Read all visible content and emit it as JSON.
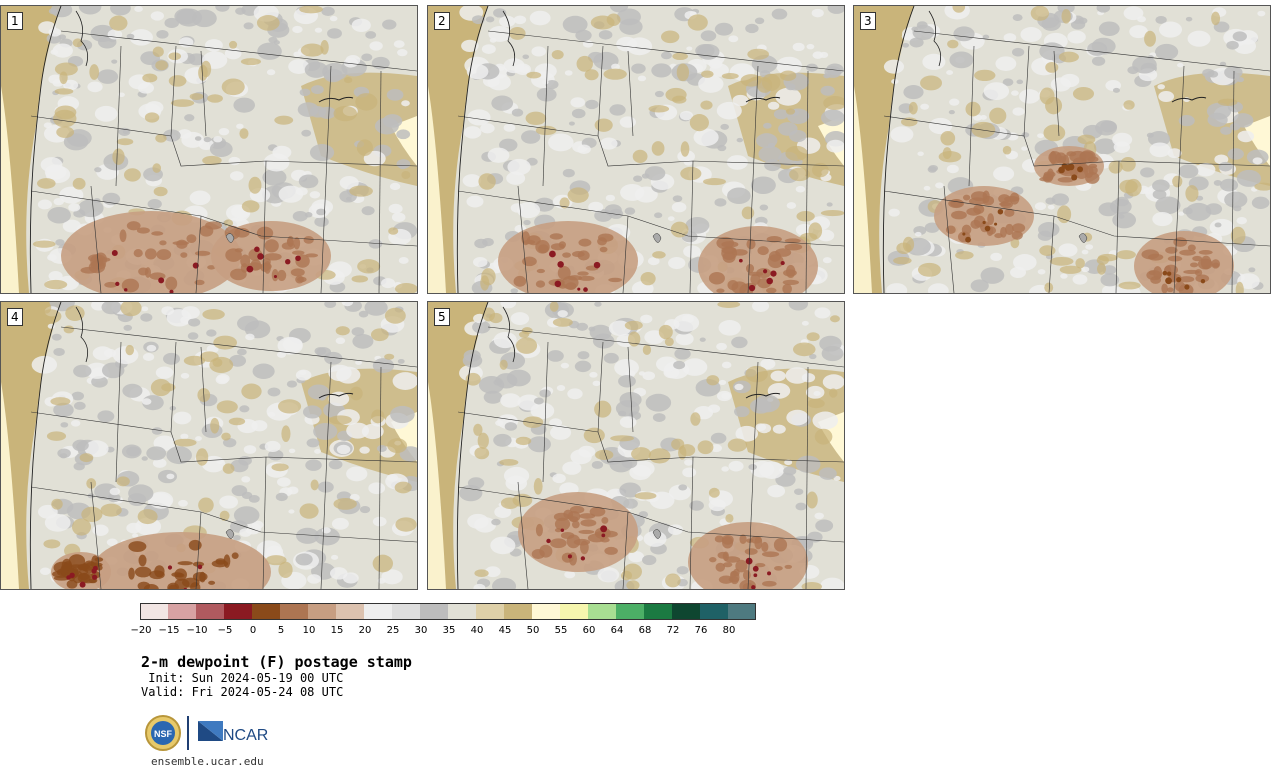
{
  "panels": [
    {
      "label": "1",
      "pattern": "A"
    },
    {
      "label": "2",
      "pattern": "B"
    },
    {
      "label": "3",
      "pattern": "C"
    },
    {
      "label": "4",
      "pattern": "D"
    },
    {
      "label": "5",
      "pattern": "E"
    }
  ],
  "colorbar": {
    "ticks": [
      "−20",
      "−15",
      "−10",
      "−5",
      "0",
      "5",
      "10",
      "15",
      "20",
      "25",
      "30",
      "35",
      "40",
      "45",
      "50",
      "55",
      "60",
      "64",
      "68",
      "72",
      "76",
      "80"
    ],
    "colors": [
      "#f2e6e4",
      "#d7a2a3",
      "#b05a5f",
      "#8b1a22",
      "#8a4a1a",
      "#ad7552",
      "#c79e82",
      "#dcc2af",
      "#eeeeee",
      "#dedede",
      "#bdbdbd",
      "#e1e0d6",
      "#ded0a8",
      "#c9b47a",
      "#fff8d6",
      "#f6f6ae",
      "#a8de92",
      "#4caf66",
      "#1b7a42",
      "#0e4630",
      "#1f6166",
      "#4e7a80"
    ]
  },
  "title": "2-m dewpoint (F) postage stamp",
  "init": " Init: Sun 2024-05-19 00 UTC",
  "valid": "Valid: Fri 2024-05-24 08 UTC",
  "logos": {
    "nsf": "NSF",
    "ncar": "NCAR"
  },
  "url": "ensemble.ucar.edu"
}
